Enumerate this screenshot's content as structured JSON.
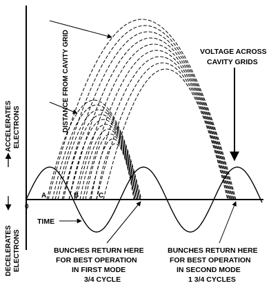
{
  "left_labels": {
    "accelerates_line1": "ACCELERATES",
    "accelerates_line2": "ELECTRONS",
    "decelerates_line1": "DECELERATES",
    "decelerates_line2": "ELECTRONS"
  },
  "distance_label": "DISTANCE FROM CAVITY GRID",
  "voltage_label": {
    "line1": "VOLTAGE ACROSS",
    "line2": "CAVITY GRIDS"
  },
  "time_label": "TIME",
  "origin_label": "0",
  "points": {
    "a": "A",
    "b": "B",
    "c": "C"
  },
  "first_mode": {
    "line1": "BUNCHES RETURN HERE",
    "line2": "FOR BEST OPERATION",
    "line3": "IN FIRST MODE",
    "line4": "3/4 CYCLE"
  },
  "second_mode": {
    "line1": "BUNCHES RETURN HERE",
    "line2": "FOR BEST OPERATION",
    "line3": "IN SECOND MODE",
    "line4": "1 3/4 CYCLES"
  }
}
